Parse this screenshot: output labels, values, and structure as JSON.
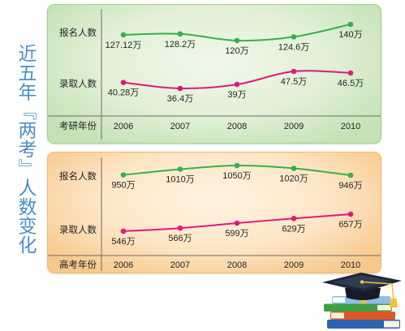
{
  "title": "近五年『两考』人数变化",
  "illustration": {
    "cap_icon": "graduation-cap-icon",
    "books_icon": "book-stack-icon"
  },
  "chart_data": [
    {
      "type": "line",
      "xlabel": "考研年份",
      "categories": [
        "2006",
        "2007",
        "2008",
        "2009",
        "2010"
      ],
      "series": [
        {
          "name": "报名人数",
          "values": [
            127.12,
            128.2,
            120,
            124.6,
            140
          ],
          "labels": [
            "127.12万",
            "128.2万",
            "120万",
            "124.6万",
            "140万"
          ],
          "color": "#31b24c"
        },
        {
          "name": "录取人数",
          "values": [
            40.28,
            36.4,
            39,
            47.5,
            46.5
          ],
          "labels": [
            "40.28万",
            "36.4万",
            "39万",
            "47.5万",
            "46.5万"
          ],
          "color": "#e2177e"
        }
      ],
      "grid": false
    },
    {
      "type": "line",
      "xlabel": "高考年份",
      "categories": [
        "2006",
        "2007",
        "2008",
        "2009",
        "2010"
      ],
      "series": [
        {
          "name": "报名人数",
          "values": [
            950,
            1010,
            1050,
            1020,
            946
          ],
          "labels": [
            "950万",
            "1010万",
            "1050万",
            "1020万",
            "946万"
          ],
          "color": "#31b24c"
        },
        {
          "name": "录取人数",
          "values": [
            546,
            566,
            599,
            629,
            657
          ],
          "labels": [
            "546万",
            "566万",
            "599万",
            "629万",
            "657万"
          ],
          "color": "#e2177e"
        }
      ],
      "grid": false
    }
  ]
}
